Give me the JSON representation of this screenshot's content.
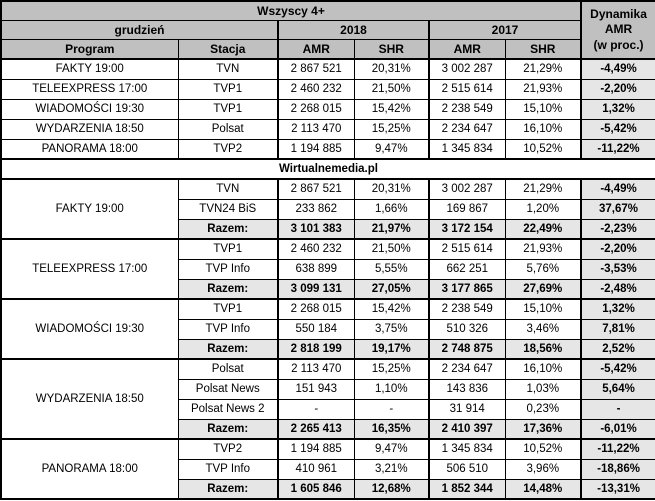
{
  "colors": {
    "header_bg": "#c0c0c0",
    "shaded_cell_bg": "#e6e6e6",
    "border": "#000000",
    "banner_bg": "#ffffff"
  },
  "chart_data": {
    "type": "table",
    "title": "Wszyscy 4+",
    "header": {
      "audience": "Wszyscy 4+",
      "dynamics": "Dynamika\nAMR\n(w proc.)",
      "month": "grudzień",
      "year_2018": "2018",
      "year_2017": "2017",
      "program": "Program",
      "station": "Stacja",
      "amr_2018": "AMR",
      "shr_2018": "SHR",
      "amr_2017": "AMR",
      "shr_2017": "SHR"
    },
    "banner": "Wirtualnemedia.pl",
    "summary_rows": [
      {
        "program": "FAKTY 19:00",
        "station": "TVN",
        "amr_2018": "2 867 521",
        "shr_2018": "20,31%",
        "amr_2017": "3 002 287",
        "shr_2017": "21,29%",
        "dynamics": "-4,49%"
      },
      {
        "program": "TELEEXPRESS 17:00",
        "station": "TVP1",
        "amr_2018": "2 460 232",
        "shr_2018": "21,50%",
        "amr_2017": "2 515 614",
        "shr_2017": "21,93%",
        "dynamics": "-2,20%"
      },
      {
        "program": "WIADOMOŚCI 19:30",
        "station": "TVP1",
        "amr_2018": "2 268 015",
        "shr_2018": "15,42%",
        "amr_2017": "2 238 549",
        "shr_2017": "15,10%",
        "dynamics": "1,32%"
      },
      {
        "program": "WYDARZENIA 18:50",
        "station": "Polsat",
        "amr_2018": "2 113 470",
        "shr_2018": "15,25%",
        "amr_2017": "2 234 647",
        "shr_2017": "16,10%",
        "dynamics": "-5,42%"
      },
      {
        "program": "PANORAMA 18:00",
        "station": "TVP2",
        "amr_2018": "1 194 885",
        "shr_2018": "9,47%",
        "amr_2017": "1 345 834",
        "shr_2017": "10,52%",
        "dynamics": "-11,22%"
      }
    ],
    "groups": [
      {
        "program": "FAKTY 19:00",
        "rows": [
          {
            "station": "TVN",
            "amr_2018": "2 867 521",
            "shr_2018": "20,31%",
            "amr_2017": "3 002 287",
            "shr_2017": "21,29%",
            "dynamics": "-4,49%"
          },
          {
            "station": "TVN24 BiS",
            "amr_2018": "233 862",
            "shr_2018": "1,66%",
            "amr_2017": "169 867",
            "shr_2017": "1,20%",
            "dynamics": "37,67%"
          },
          {
            "station": "Razem:",
            "amr_2018": "3 101 383",
            "shr_2018": "21,97%",
            "amr_2017": "3 172 154",
            "shr_2017": "22,49%",
            "dynamics": "-2,23%",
            "total": true
          }
        ]
      },
      {
        "program": "TELEEXPRESS 17:00",
        "rows": [
          {
            "station": "TVP1",
            "amr_2018": "2 460 232",
            "shr_2018": "21,50%",
            "amr_2017": "2 515 614",
            "shr_2017": "21,93%",
            "dynamics": "-2,20%"
          },
          {
            "station": "TVP Info",
            "amr_2018": "638 899",
            "shr_2018": "5,55%",
            "amr_2017": "662 251",
            "shr_2017": "5,76%",
            "dynamics": "-3,53%"
          },
          {
            "station": "Razem:",
            "amr_2018": "3 099 131",
            "shr_2018": "27,05%",
            "amr_2017": "3 177 865",
            "shr_2017": "27,69%",
            "dynamics": "-2,48%",
            "total": true
          }
        ]
      },
      {
        "program": "WIADOMOŚCI 19:30",
        "rows": [
          {
            "station": "TVP1",
            "amr_2018": "2 268 015",
            "shr_2018": "15,42%",
            "amr_2017": "2 238 549",
            "shr_2017": "15,10%",
            "dynamics": "1,32%"
          },
          {
            "station": "TVP Info",
            "amr_2018": "550 184",
            "shr_2018": "3,75%",
            "amr_2017": "510 326",
            "shr_2017": "3,46%",
            "dynamics": "7,81%"
          },
          {
            "station": "Razem:",
            "amr_2018": "2 818 199",
            "shr_2018": "19,17%",
            "amr_2017": "2 748 875",
            "shr_2017": "18,56%",
            "dynamics": "2,52%",
            "total": true
          }
        ]
      },
      {
        "program": "WYDARZENIA 18:50",
        "rows": [
          {
            "station": "Polsat",
            "amr_2018": "2 113 470",
            "shr_2018": "15,25%",
            "amr_2017": "2 234 647",
            "shr_2017": "16,10%",
            "dynamics": "-5,42%"
          },
          {
            "station": "Polsat News",
            "amr_2018": "151 943",
            "shr_2018": "1,10%",
            "amr_2017": "143 836",
            "shr_2017": "1,03%",
            "dynamics": "5,64%"
          },
          {
            "station": "Polsat News 2",
            "amr_2018": "-",
            "shr_2018": "-",
            "amr_2017": "31 914",
            "shr_2017": "0,23%",
            "dynamics": "-"
          },
          {
            "station": "Razem:",
            "amr_2018": "2 265 413",
            "shr_2018": "16,35%",
            "amr_2017": "2 410 397",
            "shr_2017": "17,36%",
            "dynamics": "-6,01%",
            "total": true
          }
        ]
      },
      {
        "program": "PANORAMA 18:00",
        "rows": [
          {
            "station": "TVP2",
            "amr_2018": "1 194 885",
            "shr_2018": "9,47%",
            "amr_2017": "1 345 834",
            "shr_2017": "10,52%",
            "dynamics": "-11,22%"
          },
          {
            "station": "TVP Info",
            "amr_2018": "410 961",
            "shr_2018": "3,21%",
            "amr_2017": "506 510",
            "shr_2017": "3,96%",
            "dynamics": "-18,86%"
          },
          {
            "station": "Razem:",
            "amr_2018": "1 605 846",
            "shr_2018": "12,68%",
            "amr_2017": "1 852 344",
            "shr_2017": "14,48%",
            "dynamics": "-13,31%",
            "total": true
          }
        ]
      }
    ]
  }
}
